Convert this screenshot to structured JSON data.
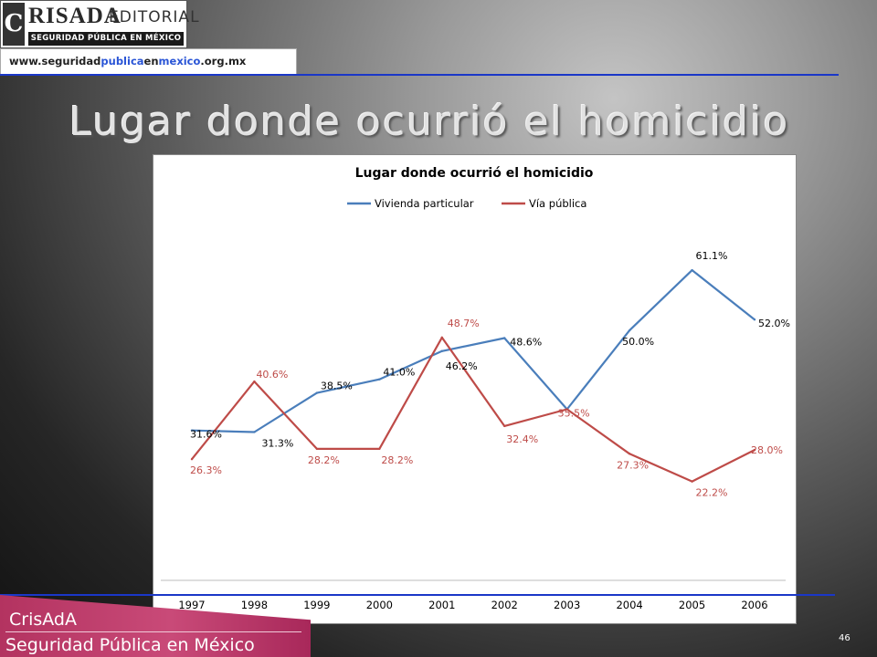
{
  "logo": {
    "mark": "C",
    "name": "RISADA",
    "editorial": "EDITORIAL",
    "subtitle": "SEGURIDAD PÚBLICA EN MÉXICO"
  },
  "url": {
    "part1": "www.seguridad",
    "part2": "publica",
    "part3": "en",
    "part4": "mexico",
    "part5": ".org.mx"
  },
  "slide": {
    "title": "Lugar donde ocurrió el homicidio",
    "footer_line1": "CrisAdA",
    "footer_line2": "Seguridad Pública en México",
    "page_number": "46"
  },
  "colors": {
    "series_blue": "#4a7ebb",
    "series_red": "#be4b48",
    "accent_blue_line": "#1a37c8",
    "footer_pink": "#b33360"
  },
  "chart_data": {
    "type": "line",
    "title": "Lugar donde ocurrió el homicidio",
    "categories": [
      "1997",
      "1998",
      "1999",
      "2000",
      "2001",
      "2002",
      "2003",
      "2004",
      "2005",
      "2006"
    ],
    "series": [
      {
        "name": "Vivienda particular",
        "values": [
          31.6,
          31.3,
          38.5,
          41.0,
          46.2,
          48.6,
          35.5,
          50.0,
          61.1,
          52.0
        ],
        "labels": [
          "31.6%",
          "31.3%",
          "38.5%",
          "41.0%",
          "46.2%",
          "48.6%",
          "",
          "50.0%",
          "61.1%",
          "52.0%"
        ]
      },
      {
        "name": "Vía pública",
        "values": [
          26.3,
          40.6,
          28.2,
          28.2,
          48.7,
          32.4,
          35.5,
          27.3,
          22.2,
          28.0
        ],
        "labels": [
          "26.3%",
          "40.6%",
          "28.2%",
          "28.2%",
          "48.7%",
          "32.4%",
          "35.5%",
          "27.3%",
          "22.2%",
          "28.0%"
        ]
      }
    ],
    "ylim": [
      5,
      68
    ],
    "legend": "top",
    "grid": false
  }
}
